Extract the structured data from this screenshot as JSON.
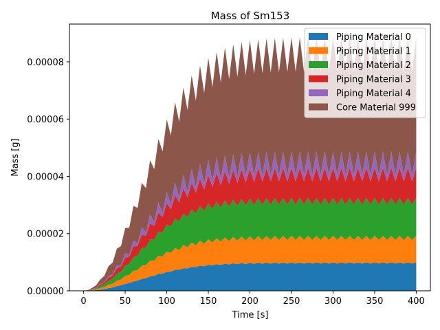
{
  "chart_data": {
    "type": "area",
    "stacked": true,
    "title": "Mass of Sm153",
    "xlabel": "Time [s]",
    "ylabel": "Mass [g]",
    "xlim": [
      -17,
      417
    ],
    "ylim": [
      0,
      9.32e-05
    ],
    "xticks": [
      0,
      50,
      100,
      150,
      200,
      250,
      300,
      350,
      400
    ],
    "yticks": [
      0,
      2e-05,
      4e-05,
      6e-05,
      8e-05
    ],
    "xtick_labels": [
      "0",
      "50",
      "100",
      "150",
      "200",
      "250",
      "300",
      "350",
      "400"
    ],
    "ytick_labels": [
      "0.00000",
      "0.00002",
      "0.00004",
      "0.00006",
      "0.00008"
    ],
    "grid": false,
    "legend_position": "top-right",
    "x_start": 0,
    "x_end": 400,
    "x_step": 5,
    "series": [
      {
        "name": "Piping Material 0",
        "color": "#1f77b4",
        "plateau": 9.7e-06,
        "rise_tau": 90,
        "ripple": 0.04,
        "ripple_period": 10
      },
      {
        "name": "Piping Material 1",
        "color": "#ff7f0e",
        "plateau": 8.8e-06,
        "rise_tau": 80,
        "ripple": 0.12,
        "ripple_period": 10
      },
      {
        "name": "Piping Material 2",
        "color": "#2ca02c",
        "plateau": 1.28e-05,
        "rise_tau": 85,
        "ripple": 0.07,
        "ripple_period": 10
      },
      {
        "name": "Piping Material 3",
        "color": "#d62728",
        "plateau": 9.3e-06,
        "rise_tau": 85,
        "ripple": 0.25,
        "ripple_period": 10
      },
      {
        "name": "Piping Material 4",
        "color": "#9467bd",
        "plateau": 4e-06,
        "rise_tau": 85,
        "ripple": 0.9,
        "ripple_period": 10
      },
      {
        "name": "Core Material 999",
        "color": "#8c564b",
        "plateau": 3.8e-05,
        "rise_tau": 95,
        "ripple": 0.1,
        "ripple_period": 10
      }
    ]
  }
}
